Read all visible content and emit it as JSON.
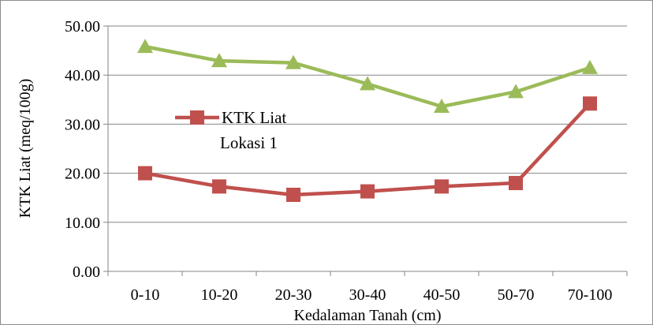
{
  "chart_data": {
    "type": "line",
    "title": "",
    "xlabel": "Kedalaman Tanah (cm)",
    "ylabel": "KTK Liat (meq/100g)",
    "categories": [
      "0-10",
      "10-20",
      "20-30",
      "30-40",
      "40-50",
      "50-70",
      "70-100"
    ],
    "ylim": [
      0,
      50
    ],
    "yticks": [
      "0.00",
      "10.00",
      "20.00",
      "30.00",
      "40.00",
      "50.00"
    ],
    "grid": true,
    "legend_position": "center-left",
    "series": [
      {
        "name": "KTK Liat Lokasi 1",
        "legend_lines": [
          "KTK Liat",
          "Lokasi 1"
        ],
        "color": "#c0504d",
        "marker": "square",
        "values": [
          20.0,
          17.3,
          15.6,
          16.3,
          17.3,
          18.0,
          34.2
        ]
      },
      {
        "name": "",
        "color": "#9bbb59",
        "marker": "triangle",
        "values": [
          45.8,
          42.9,
          42.5,
          38.2,
          33.6,
          36.6,
          41.5
        ]
      }
    ]
  }
}
